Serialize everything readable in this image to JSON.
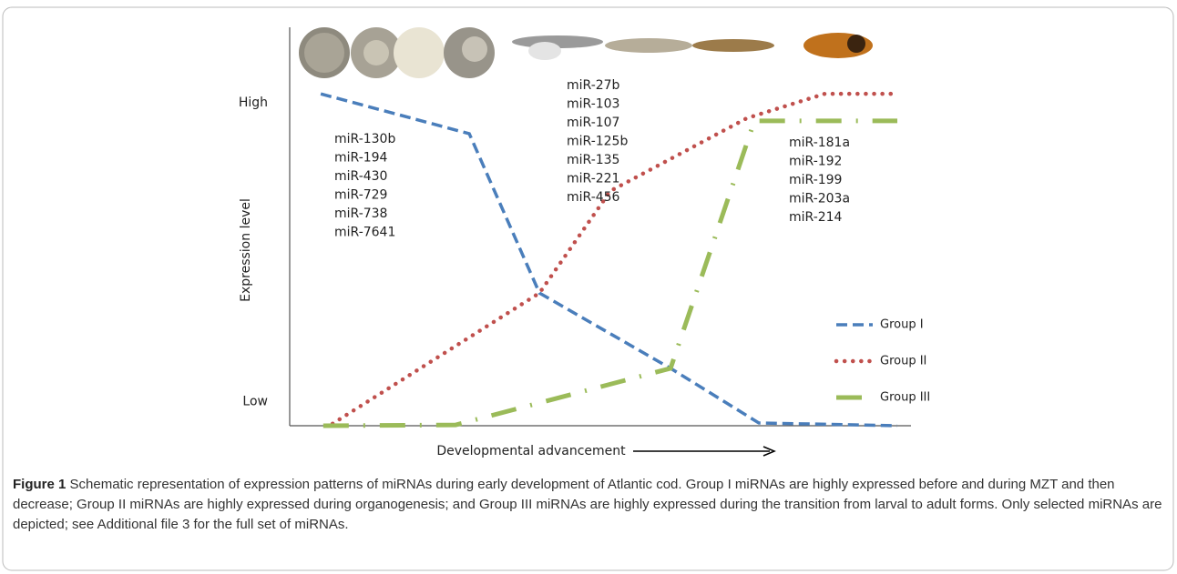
{
  "chart_data": {
    "type": "line",
    "ylabel": "Expression level",
    "xlabel": "Developmental advancement",
    "xlim": [
      0,
      100
    ],
    "ylim": [
      0,
      100
    ],
    "yticks": [
      {
        "value": 6,
        "label": "Low"
      },
      {
        "value": 81,
        "label": "High"
      }
    ],
    "grid": false,
    "legend": "lower right",
    "series": [
      {
        "name": "Group I",
        "color": "#4a7ebb",
        "dash": "dashed",
        "x": [
          5,
          28.9,
          40.2,
          61.3,
          75.5,
          97.8
        ],
        "values": [
          83.3,
          73.3,
          33.3,
          14.4,
          0.7,
          0
        ]
      },
      {
        "name": "Group II",
        "color": "#c0504d",
        "dash": "dotted",
        "x": [
          6.9,
          40.2,
          51.6,
          73.6,
          86.1,
          97.8
        ],
        "values": [
          0.5,
          33.3,
          58.9,
          77.2,
          83.3,
          83.3
        ]
      },
      {
        "name": "Group III",
        "color": "#9bbb59",
        "dash": "dashdot",
        "x": [
          5.4,
          26.7,
          61.3,
          74.8,
          97.8
        ],
        "values": [
          0,
          0.2,
          14.4,
          76.5,
          76.5
        ]
      }
    ],
    "annotations": [
      [
        "miR-130b",
        "miR-194",
        "miR-430",
        "miR-729",
        "miR-738",
        "miR-7641"
      ],
      [
        "miR-27b",
        "miR-103",
        "miR-107",
        "miR-125b",
        "miR-135",
        "miR-221",
        "miR-456"
      ],
      [
        "miR-181a",
        "miR-192",
        "miR-199",
        "miR-203a",
        "miR-214"
      ]
    ]
  },
  "figure_label": "Figure 1",
  "caption": "Schematic representation of expression patterns of miRNAs during early development of Atlantic cod. Group I miRNAs are highly expressed before and during MZT and then decrease; Group II miRNAs are highly expressed during organogenesis; and Group III miRNAs are highly expressed during the transition from larval to adult forms. Only selected miRNAs are depicted; see Additional file 3 for the full set of miRNAs."
}
